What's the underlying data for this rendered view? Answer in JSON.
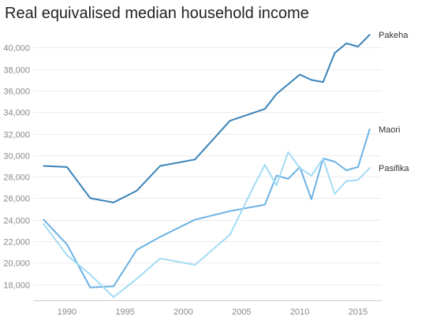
{
  "chart_data": {
    "type": "line",
    "title": "Real equivalised median household income",
    "xlabel": "",
    "ylabel": "",
    "xlim": [
      1987.5,
      2016.5
    ],
    "ylim": [
      16500,
      41500
    ],
    "grid": true,
    "legend": "direct-labels-right",
    "x_ticks": [
      1990,
      1995,
      2000,
      2005,
      2010,
      2015
    ],
    "y_ticks": [
      18000,
      20000,
      22000,
      24000,
      26000,
      28000,
      30000,
      32000,
      34000,
      36000,
      38000,
      40000
    ],
    "y_tick_labels": [
      "18,000",
      "20,000",
      "22,000",
      "24,000",
      "26,000",
      "28,000",
      "30,000",
      "32,000",
      "34,000",
      "36,000",
      "38,000",
      "40,000"
    ],
    "series": [
      {
        "name": "Pakeha",
        "color": "#3a83b8",
        "points": [
          [
            1988,
            29000
          ],
          [
            1990,
            28900
          ],
          [
            1992,
            26000
          ],
          [
            1994,
            25600
          ],
          [
            1996,
            26700
          ],
          [
            1998,
            29000
          ],
          [
            2001,
            29600
          ],
          [
            2004,
            33200
          ],
          [
            2007,
            34300
          ],
          [
            2008,
            35700
          ],
          [
            2010,
            37500
          ],
          [
            2011,
            37000
          ],
          [
            2012,
            36800
          ],
          [
            2013,
            39500
          ],
          [
            2014,
            40400
          ],
          [
            2015,
            40100
          ],
          [
            2016,
            41200
          ]
        ]
      },
      {
        "name": "Maori",
        "color": "#6cb2e4",
        "points": [
          [
            1988,
            24000
          ],
          [
            1990,
            21700
          ],
          [
            1992,
            17700
          ],
          [
            1994,
            17800
          ],
          [
            1996,
            21200
          ],
          [
            1998,
            22400
          ],
          [
            2001,
            24000
          ],
          [
            2004,
            24800
          ],
          [
            2007,
            25400
          ],
          [
            2008,
            28100
          ],
          [
            2009,
            27800
          ],
          [
            2010,
            28900
          ],
          [
            2011,
            25900
          ],
          [
            2012,
            29700
          ],
          [
            2013,
            29400
          ],
          [
            2014,
            28600
          ],
          [
            2015,
            28900
          ],
          [
            2016,
            32400
          ]
        ]
      },
      {
        "name": "Pasifika",
        "color": "#a3dcf4",
        "points": [
          [
            1988,
            23600
          ],
          [
            1990,
            20700
          ],
          [
            1992,
            18900
          ],
          [
            1994,
            16800
          ],
          [
            1996,
            18500
          ],
          [
            1998,
            20400
          ],
          [
            2001,
            19800
          ],
          [
            2004,
            22600
          ],
          [
            2006,
            27000
          ],
          [
            2007,
            29100
          ],
          [
            2008,
            27200
          ],
          [
            2009,
            30300
          ],
          [
            2010,
            28800
          ],
          [
            2011,
            28100
          ],
          [
            2012,
            29700
          ],
          [
            2013,
            26400
          ],
          [
            2014,
            27600
          ],
          [
            2015,
            27700
          ],
          [
            2016,
            28800
          ]
        ]
      }
    ]
  }
}
